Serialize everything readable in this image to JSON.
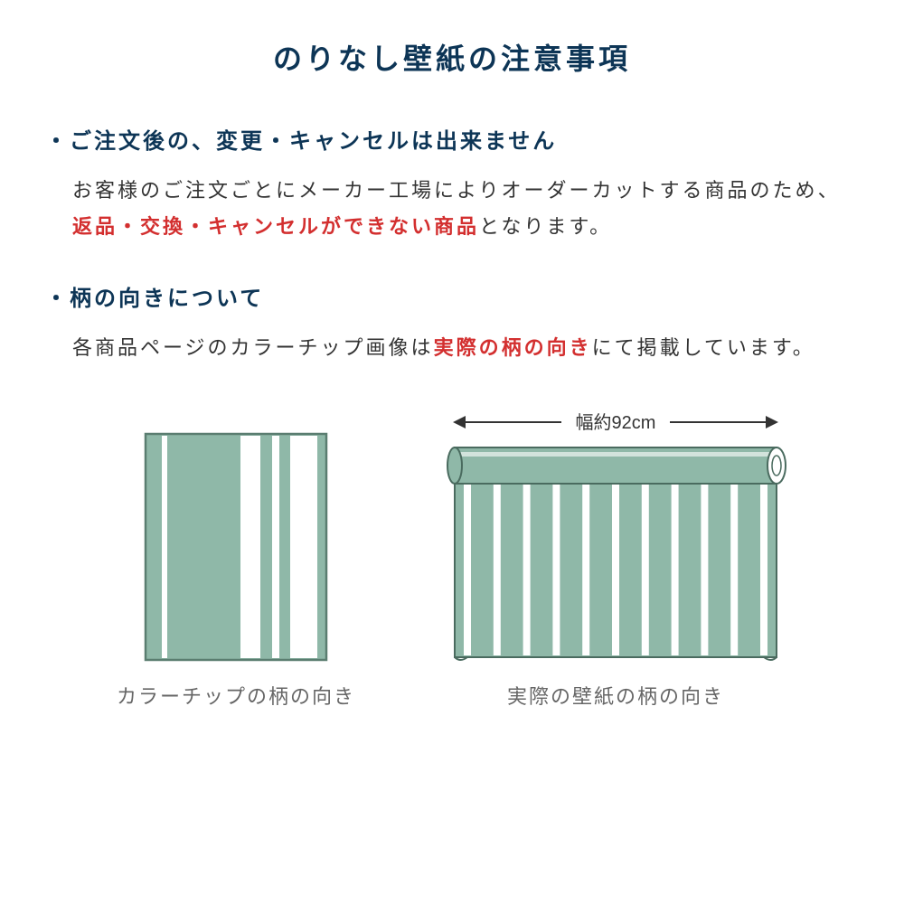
{
  "colors": {
    "title": "#0d3556",
    "heading": "#0d3556",
    "body": "#333333",
    "highlight": "#d32f2f",
    "caption": "#666666",
    "widthLabel": "#333333",
    "swatchFill": "#8fb8a8",
    "swatchStroke": "#5a7d70",
    "stripeWhite": "#ffffff",
    "rollStroke": "#4a6b5f",
    "arrowColor": "#333333"
  },
  "title": "のりなし壁紙の注意事項",
  "section1": {
    "heading": "・ご注文後の、変更・キャンセルは出来ません",
    "body_pre": "お客様のご注文ごとにメーカー工場によりオーダーカットする商品のため、",
    "body_highlight": "返品・交換・キャンセルができない商品",
    "body_post": "となります。"
  },
  "section2": {
    "heading": "・柄の向きについて",
    "body_pre": "各商品ページのカラーチップ画像は",
    "body_highlight": "実際の柄の向き",
    "body_post": "にて掲載しています。"
  },
  "diagram": {
    "left_caption": "カラーチップの柄の向き",
    "right_caption": "実際の壁紙の柄の向き",
    "width_label": "幅約92cm"
  }
}
